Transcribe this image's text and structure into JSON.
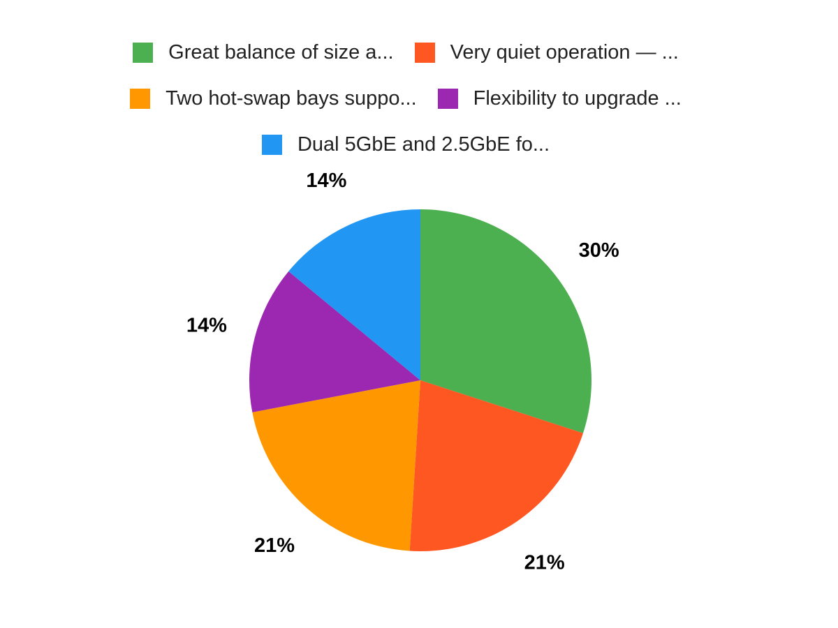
{
  "chart_data": {
    "type": "pie",
    "title": "",
    "legend_position": "top",
    "start_angle": "top",
    "direction": "clockwise",
    "background_color": "#ffffff",
    "label_color": "#000000",
    "legend_text_color": "#212121",
    "slices": [
      {
        "label": "Great balance of size a...",
        "value": 30,
        "pct_label": "30%",
        "color": "#4caf50"
      },
      {
        "label": "Very quiet operation — ...",
        "value": 21,
        "pct_label": "21%",
        "color": "#ff5722"
      },
      {
        "label": "Two hot-swap bays suppo...",
        "value": 21,
        "pct_label": "21%",
        "color": "#ff9800"
      },
      {
        "label": "Flexibility to upgrade ...",
        "value": 14,
        "pct_label": "14%",
        "color": "#9c27b0"
      },
      {
        "label": "Dual 5GbE and 2.5GbE fo...",
        "value": 14,
        "pct_label": "14%",
        "color": "#2196f3"
      }
    ]
  }
}
